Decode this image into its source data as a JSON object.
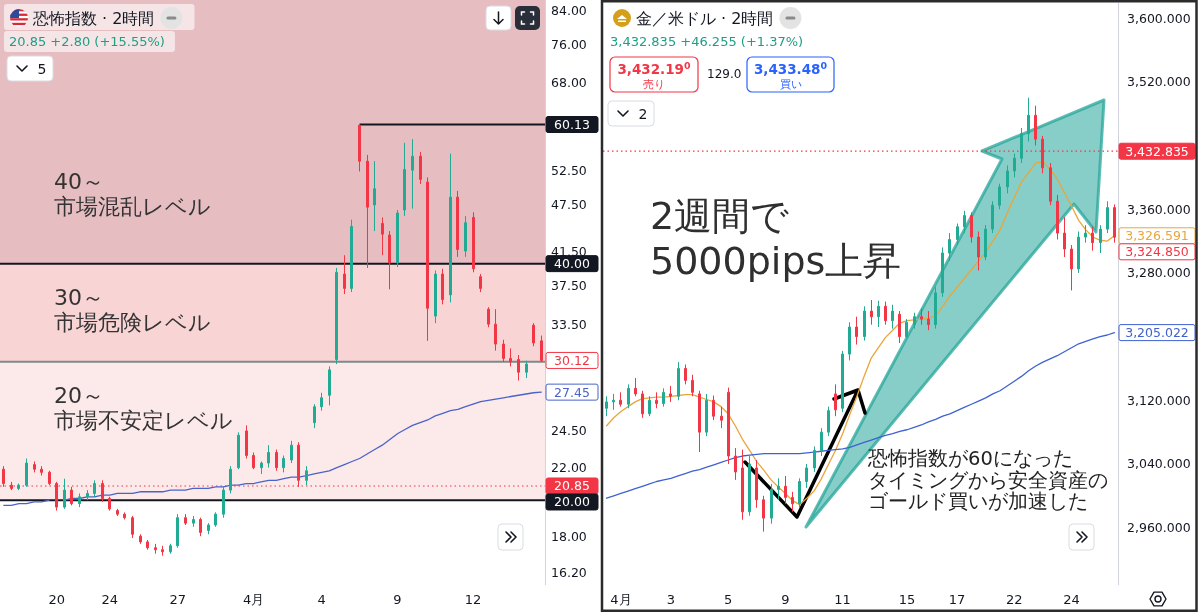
{
  "chart_data": [
    {
      "type": "candlestick",
      "title": "恐怖指数 · 2時間",
      "subtitle": "20.85 +2.80 (+15.55%)",
      "categories": [
        null,
        null,
        null,
        null,
        null,
        null,
        null,
        "20",
        null,
        null,
        null,
        null,
        null,
        null,
        "24",
        null,
        null,
        null,
        null,
        null,
        null,
        null,
        null,
        "27",
        null,
        null,
        null,
        null,
        null,
        null,
        null,
        null,
        null,
        "4月",
        null,
        null,
        null,
        null,
        null,
        null,
        null,
        null,
        "4",
        null,
        null,
        null,
        null,
        null,
        null,
        null,
        null,
        null,
        "9",
        null,
        null,
        null,
        null,
        null,
        null,
        null,
        null,
        null,
        "12",
        null,
        null,
        null,
        null,
        null,
        null,
        null,
        null,
        null
      ],
      "ohlc": [
        [
          21.9,
          22.1,
          20.8,
          21.0
        ],
        [
          20.9,
          21.1,
          20.6,
          20.7
        ],
        [
          20.7,
          21.0,
          20.6,
          20.9
        ],
        [
          20.9,
          22.6,
          20.8,
          22.3
        ],
        [
          22.2,
          22.4,
          21.7,
          21.9
        ],
        [
          21.9,
          22.1,
          21.5,
          21.7
        ],
        [
          21.7,
          21.8,
          20.9,
          21.0
        ],
        [
          21.0,
          21.1,
          19.4,
          19.6
        ],
        [
          19.6,
          21.3,
          19.5,
          20.6
        ],
        [
          20.6,
          20.8,
          19.7,
          19.8
        ],
        [
          19.8,
          20.4,
          19.6,
          20.2
        ],
        [
          20.2,
          20.6,
          20.0,
          20.4
        ],
        [
          20.4,
          21.2,
          20.2,
          21.0
        ],
        [
          21.0,
          21.2,
          19.9,
          20.1
        ],
        [
          20.1,
          20.2,
          19.4,
          19.5
        ],
        [
          19.4,
          19.5,
          19.1,
          19.2
        ],
        [
          19.2,
          19.3,
          18.9,
          19.0
        ],
        [
          19.0,
          19.1,
          17.9,
          18.1
        ],
        [
          18.0,
          18.1,
          17.6,
          17.7
        ],
        [
          17.7,
          17.8,
          17.3,
          17.4
        ],
        [
          17.4,
          17.6,
          17.1,
          17.3
        ],
        [
          17.3,
          17.5,
          17.0,
          17.2
        ],
        [
          17.2,
          17.6,
          17.1,
          17.5
        ],
        [
          17.5,
          19.2,
          17.4,
          19.0
        ],
        [
          19.0,
          19.2,
          18.6,
          18.7
        ],
        [
          18.7,
          19.1,
          18.5,
          18.9
        ],
        [
          18.9,
          19.0,
          18.0,
          18.2
        ],
        [
          18.3,
          18.7,
          18.1,
          18.6
        ],
        [
          18.6,
          19.3,
          18.5,
          19.2
        ],
        [
          19.2,
          20.8,
          19.0,
          20.6
        ],
        [
          20.6,
          22.1,
          20.4,
          21.9
        ],
        [
          22.0,
          24.4,
          21.9,
          24.2
        ],
        [
          24.5,
          24.9,
          22.6,
          22.8
        ],
        [
          22.8,
          23.0,
          21.9,
          22.0
        ],
        [
          22.0,
          22.4,
          21.6,
          22.3
        ],
        [
          22.3,
          23.5,
          22.0,
          23.0
        ],
        [
          23.0,
          23.2,
          21.8,
          22.0
        ],
        [
          22.0,
          22.8,
          21.7,
          22.6
        ],
        [
          22.5,
          23.8,
          22.3,
          23.5
        ],
        [
          23.5,
          23.7,
          20.8,
          21.2
        ],
        [
          21.2,
          22.1,
          20.9,
          21.8
        ],
        [
          25.1,
          26.5,
          24.7,
          26.3
        ],
        [
          26.3,
          27.4,
          26.0,
          27.0
        ],
        [
          27.2,
          29.6,
          26.4,
          29.3
        ],
        [
          30.2,
          39.5,
          29.8,
          39.0
        ],
        [
          38.8,
          41.0,
          36.6,
          37.2
        ],
        [
          37.2,
          45.5,
          36.8,
          44.6
        ],
        [
          60.0,
          60.13,
          52.4,
          54.0
        ],
        [
          54.0,
          55.0,
          39.5,
          47.2
        ],
        [
          47.5,
          54.0,
          44.0,
          49.8
        ],
        [
          45.0,
          45.8,
          41.0,
          43.6
        ],
        [
          43.5,
          44.0,
          37.1,
          40.1
        ],
        [
          40.1,
          46.8,
          39.6,
          46.4
        ],
        [
          46.8,
          57.0,
          46.0,
          52.7
        ],
        [
          52.6,
          57.6,
          47.0,
          54.8
        ],
        [
          54.8,
          55.5,
          50.5,
          51.2
        ],
        [
          50.8,
          51.5,
          31.9,
          35.1
        ],
        [
          34.3,
          39.2,
          33.6,
          38.8
        ],
        [
          38.8,
          39.4,
          35.5,
          36.0
        ],
        [
          36.5,
          55.2,
          35.7,
          48.6
        ],
        [
          48.6,
          49.5,
          40.8,
          41.7
        ],
        [
          41.5,
          46.0,
          40.8,
          45.1
        ],
        [
          45.8,
          46.5,
          39.0,
          39.4
        ],
        [
          38.5,
          38.8,
          36.8,
          37.2
        ],
        [
          35.0,
          35.2,
          33.2,
          33.5
        ],
        [
          33.5,
          35.0,
          31.0,
          31.6
        ],
        [
          31.6,
          32.0,
          30.0,
          30.3
        ],
        [
          30.3,
          31.2,
          29.6,
          30.0
        ],
        [
          30.2,
          30.6,
          28.4,
          29.1
        ],
        [
          29.1,
          30.1,
          28.6,
          29.8
        ],
        [
          33.4,
          33.6,
          31.4,
          31.7
        ],
        [
          31.9,
          32.4,
          30.0,
          30.12
        ]
      ],
      "value_labels": [
        null,
        null,
        null,
        null,
        null,
        null,
        null,
        null,
        null,
        null,
        null,
        null,
        null,
        null,
        null,
        null,
        null,
        null,
        null,
        null,
        null,
        null,
        null,
        null,
        null,
        null,
        null,
        null,
        null,
        null,
        null,
        null,
        null,
        null,
        null,
        null,
        null,
        null,
        null,
        null,
        null,
        null,
        null,
        null,
        null,
        null,
        null,
        null,
        null,
        null,
        null,
        null,
        null,
        null,
        null,
        null,
        null,
        null,
        null,
        null,
        null,
        null,
        null,
        null,
        null,
        null,
        null,
        null,
        null,
        null,
        null,
        "30.12"
      ],
      "series": [
        {
          "type": "line",
          "color": "#4a63c9",
          "values": [
            19.7,
            19.7,
            19.8,
            19.8,
            19.9,
            19.9,
            20.0,
            null,
            20.0,
            20.1,
            20.1,
            20.2,
            20.2,
            20.3,
            20.3,
            20.4,
            20.4,
            20.4,
            20.5,
            20.5,
            20.5,
            20.5,
            20.6,
            20.6,
            20.6,
            20.7,
            20.7,
            20.7,
            20.8,
            20.8,
            20.9,
            20.9,
            21.0,
            21.0,
            21.1,
            21.2,
            21.2,
            21.3,
            21.4,
            21.4,
            21.5,
            21.6,
            21.7,
            21.8,
            22.0,
            22.2,
            22.4,
            22.6,
            22.9,
            23.2,
            23.5,
            23.9,
            24.3,
            24.6,
            24.9,
            25.1,
            25.3,
            25.6,
            25.8,
            26.0,
            26.1,
            26.3,
            26.5,
            26.7,
            26.8,
            26.9,
            27.0,
            27.1,
            27.2,
            27.3,
            27.4,
            27.45
          ],
          "value_labels": [
            null,
            null,
            null,
            null,
            null,
            null,
            null,
            null,
            null,
            null,
            null,
            null,
            null,
            null,
            null,
            null,
            null,
            null,
            null,
            null,
            null,
            null,
            null,
            null,
            null,
            null,
            null,
            null,
            null,
            null,
            null,
            null,
            null,
            null,
            null,
            null,
            null,
            null,
            null,
            null,
            null,
            null,
            null,
            null,
            null,
            null,
            null,
            null,
            null,
            null,
            null,
            null,
            null,
            null,
            null,
            null,
            null,
            null,
            null,
            null,
            null,
            null,
            null,
            null,
            null,
            null,
            null,
            null,
            null,
            null,
            null,
            "27.45"
          ]
        }
      ],
      "log": "y",
      "ylim": [
        15.6,
        86.6
      ],
      "yticks": [
        {
          "value": 84,
          "label": "84.00"
        },
        {
          "value": 76,
          "label": "76.00"
        },
        {
          "value": 68,
          "label": "68.00"
        },
        {
          "value": 52.5,
          "label": "52.50"
        },
        {
          "value": 47.5,
          "label": "47.50"
        },
        {
          "value": 41.5,
          "label": "41.50"
        },
        {
          "value": 37.5,
          "label": "37.50"
        },
        {
          "value": 33.5,
          "label": "33.50"
        },
        {
          "value": 24.5,
          "label": "24.50"
        },
        {
          "value": 22,
          "label": "22.00"
        },
        {
          "value": 18,
          "label": "18.00"
        },
        {
          "value": 16.2,
          "label": "16.20"
        }
      ],
      "bands": [
        {
          "axis": "y",
          "from": 40,
          "to": 86.6,
          "label": "40～市場混乱レベル",
          "color": "#e6bec2"
        },
        {
          "axis": "y",
          "from": 30,
          "to": 40,
          "label": "30～市場危険レベル",
          "color": "#f8d4d5"
        },
        {
          "axis": "y",
          "from": 20,
          "to": 30,
          "label": "20～市場不安定レベル",
          "color": "#fce9ea"
        }
      ],
      "ref_lines": [
        {
          "axis": "y",
          "value": 60.13,
          "label": "60.13",
          "color": "#131722"
        },
        {
          "axis": "y",
          "value": 40,
          "label": "40.00",
          "color": "#131722"
        },
        {
          "axis": "y",
          "value": 30,
          "color": "#7c8a89"
        },
        {
          "axis": "y",
          "value": 20,
          "label": "20.00",
          "color": "#131722"
        },
        {
          "axis": "y",
          "value": 20.85,
          "label": "20.85",
          "color": "#f23645",
          "line_style": "dotted"
        }
      ],
      "annotations": [
        "5"
      ]
    },
    {
      "type": "candlestick",
      "title": "金／米ドル · 2時間",
      "subtitle": "3,432.835 +46.255 (+1.37%)",
      "categories": [
        null,
        null,
        "4月",
        null,
        null,
        null,
        null,
        null,
        null,
        "3",
        null,
        null,
        null,
        null,
        null,
        null,
        null,
        "5",
        null,
        null,
        null,
        null,
        null,
        null,
        null,
        "9",
        null,
        null,
        null,
        null,
        null,
        null,
        null,
        "11",
        null,
        null,
        null,
        null,
        null,
        null,
        null,
        null,
        "15",
        null,
        null,
        null,
        null,
        null,
        null,
        "17",
        null,
        null,
        null,
        null,
        null,
        null,
        null,
        "22",
        null,
        null,
        null,
        null,
        null,
        null,
        null,
        "24",
        null,
        null,
        null,
        null,
        null,
        null
      ],
      "ohlc": [
        [
          3110,
          3125,
          3100,
          3118
        ],
        [
          3118,
          3128,
          3108,
          3120
        ],
        [
          3120,
          3130,
          3112,
          3115
        ],
        [
          3115,
          3140,
          3110,
          3135
        ],
        [
          3135,
          3148,
          3125,
          3128
        ],
        [
          3128,
          3132,
          3098,
          3103
        ],
        [
          3103,
          3125,
          3100,
          3120
        ],
        [
          3120,
          3130,
          3110,
          3116
        ],
        [
          3116,
          3135,
          3112,
          3130
        ],
        [
          3128,
          3138,
          3118,
          3125
        ],
        [
          3125,
          3168,
          3120,
          3160
        ],
        [
          3160,
          3165,
          3140,
          3145
        ],
        [
          3145,
          3152,
          3125,
          3130
        ],
        [
          3128,
          3132,
          3055,
          3080
        ],
        [
          3080,
          3128,
          3075,
          3120
        ],
        [
          3120,
          3126,
          3095,
          3100
        ],
        [
          3100,
          3112,
          3085,
          3095
        ],
        [
          3130,
          3136,
          3040,
          3050
        ],
        [
          3050,
          3060,
          3020,
          3030
        ],
        [
          3035,
          3058,
          2970,
          2980
        ],
        [
          2980,
          3050,
          2975,
          3040
        ],
        [
          3035,
          3045,
          2985,
          2995
        ],
        [
          2995,
          3000,
          2955,
          2972
        ],
        [
          2972,
          3015,
          2965,
          3008
        ],
        [
          3008,
          3022,
          2995,
          3012
        ],
        [
          3012,
          3025,
          2990,
          2998
        ],
        [
          2998,
          3005,
          2980,
          2990
        ],
        [
          2990,
          3022,
          2985,
          3018
        ],
        [
          3018,
          3040,
          3010,
          3035
        ],
        [
          3035,
          3062,
          3030,
          3057
        ],
        [
          3057,
          3085,
          3050,
          3080
        ],
        [
          3080,
          3112,
          3075,
          3107
        ],
        [
          3128,
          3140,
          3100,
          3108
        ],
        [
          3110,
          3182,
          3105,
          3178
        ],
        [
          3178,
          3218,
          3170,
          3212
        ],
        [
          3212,
          3225,
          3190,
          3200
        ],
        [
          3200,
          3238,
          3195,
          3232
        ],
        [
          3232,
          3246,
          3215,
          3225
        ],
        [
          3225,
          3245,
          3212,
          3238
        ],
        [
          3238,
          3244,
          3215,
          3220
        ],
        [
          3220,
          3240,
          3210,
          3232
        ],
        [
          3228,
          3232,
          3192,
          3200
        ],
        [
          3200,
          3222,
          3198,
          3218
        ],
        [
          3215,
          3230,
          3210,
          3225
        ],
        [
          3225,
          3235,
          3215,
          3222
        ],
        [
          3222,
          3232,
          3208,
          3215
        ],
        [
          3215,
          3262,
          3210,
          3255
        ],
        [
          3255,
          3312,
          3250,
          3305
        ],
        [
          3305,
          3330,
          3295,
          3322
        ],
        [
          3322,
          3342,
          3315,
          3338
        ],
        [
          3338,
          3358,
          3330,
          3352
        ],
        [
          3352,
          3356,
          3318,
          3325
        ],
        [
          3325,
          3332,
          3283,
          3300
        ],
        [
          3300,
          3340,
          3296,
          3335
        ],
        [
          3335,
          3370,
          3330,
          3365
        ],
        [
          3365,
          3392,
          3360,
          3388
        ],
        [
          3388,
          3415,
          3380,
          3408
        ],
        [
          3408,
          3430,
          3400,
          3424
        ],
        [
          3424,
          3462,
          3418,
          3455
        ],
        [
          3455,
          3500,
          3445,
          3478
        ],
        [
          3478,
          3490,
          3440,
          3448
        ],
        [
          3448,
          3452,
          3405,
          3412
        ],
        [
          3412,
          3418,
          3365,
          3370
        ],
        [
          3370,
          3378,
          3322,
          3330
        ],
        [
          3330,
          3350,
          3300,
          3310
        ],
        [
          3310,
          3315,
          3258,
          3285
        ],
        [
          3285,
          3332,
          3280,
          3325
        ],
        [
          3325,
          3340,
          3318,
          3330
        ],
        [
          3330,
          3338,
          3308,
          3318
        ],
        [
          3318,
          3340,
          3305,
          3335
        ],
        [
          3335,
          3370,
          3330,
          3362
        ],
        [
          3362,
          3366,
          3318,
          3324.85
        ]
      ],
      "value_labels": [
        null,
        null,
        null,
        null,
        null,
        null,
        null,
        null,
        null,
        null,
        null,
        null,
        null,
        null,
        null,
        null,
        null,
        null,
        null,
        null,
        null,
        null,
        null,
        null,
        null,
        null,
        null,
        null,
        null,
        null,
        null,
        null,
        null,
        null,
        null,
        null,
        null,
        null,
        null,
        null,
        null,
        null,
        null,
        null,
        null,
        null,
        null,
        null,
        null,
        null,
        null,
        null,
        null,
        null,
        null,
        null,
        null,
        null,
        null,
        null,
        null,
        null,
        null,
        null,
        null,
        null,
        null,
        null,
        null,
        null,
        null,
        "3,324.850"
      ],
      "series": [
        {
          "type": "line",
          "color": "#eaa53b",
          "values": [
            3088,
            3098,
            3106,
            3112,
            3118,
            3122,
            3123,
            3124,
            3124,
            3125,
            3126,
            3127,
            3127,
            3124,
            3121,
            3118,
            3112,
            3103,
            3088,
            3071,
            3057,
            3043,
            3032,
            3020,
            3011,
            3003,
            2994,
            2989,
            2997,
            3006,
            3021,
            3039,
            3057,
            3078,
            3102,
            3125,
            3150,
            3173,
            3186,
            3199,
            3208,
            3217,
            3220,
            3221,
            3222,
            3223,
            3226,
            3238,
            3251,
            3262,
            3273,
            3284,
            3295,
            3306,
            3320,
            3334,
            3355,
            3375,
            3394,
            3406,
            3418,
            3420,
            3410,
            3398,
            3381,
            3364,
            3346,
            3334,
            3325,
            3321,
            3320,
            3326.591
          ],
          "value_labels": [
            null,
            null,
            null,
            null,
            null,
            null,
            null,
            null,
            null,
            null,
            null,
            null,
            null,
            null,
            null,
            null,
            null,
            null,
            null,
            null,
            null,
            null,
            null,
            null,
            null,
            null,
            null,
            null,
            null,
            null,
            null,
            null,
            null,
            null,
            null,
            null,
            null,
            null,
            null,
            null,
            null,
            null,
            null,
            null,
            null,
            null,
            null,
            null,
            null,
            null,
            null,
            null,
            null,
            null,
            null,
            null,
            null,
            null,
            null,
            null,
            null,
            null,
            null,
            null,
            null,
            null,
            null,
            null,
            null,
            null,
            null,
            "3,326.591"
          ]
        },
        {
          "type": "line",
          "color": "#3e62d1",
          "values": [
            2997,
            3000,
            3003,
            3006,
            3009,
            3012,
            3015,
            3018,
            3020,
            3022,
            3025,
            3028,
            3031,
            3033,
            3036,
            3039,
            3042,
            3045,
            3048,
            3050,
            3051,
            3052,
            3053,
            3053,
            3053,
            3053,
            3053,
            3053,
            3054,
            3055,
            3056,
            3057,
            3058,
            3059,
            3061,
            3064,
            3067,
            3070,
            3073,
            3076,
            3078,
            3081,
            3083,
            3086,
            3089,
            3093,
            3096,
            3100,
            3103,
            3107,
            3111,
            3115,
            3119,
            3123,
            3128,
            3132,
            3138,
            3144,
            3150,
            3157,
            3163,
            3168,
            3172,
            3176,
            3181,
            3186,
            3191,
            3194,
            3197,
            3200,
            3202,
            3205.022
          ],
          "value_labels": [
            null,
            null,
            null,
            null,
            null,
            null,
            null,
            null,
            null,
            null,
            null,
            null,
            null,
            null,
            null,
            null,
            null,
            null,
            null,
            null,
            null,
            null,
            null,
            null,
            null,
            null,
            null,
            null,
            null,
            null,
            null,
            null,
            null,
            null,
            null,
            null,
            null,
            null,
            null,
            null,
            null,
            null,
            null,
            null,
            null,
            null,
            null,
            null,
            null,
            null,
            null,
            null,
            null,
            null,
            null,
            null,
            null,
            null,
            null,
            null,
            null,
            null,
            null,
            null,
            null,
            null,
            null,
            null,
            null,
            null,
            null,
            "3,205.022"
          ]
        }
      ],
      "ylim": [
        2888,
        3619
      ],
      "yticks": [
        {
          "value": 3600,
          "label": "3,600.000"
        },
        {
          "value": 3520,
          "label": "3,520.000"
        },
        {
          "value": 3360,
          "label": "3,360.000"
        },
        {
          "value": 3280,
          "label": "3,280.000"
        },
        {
          "value": 3120,
          "label": "3,120.000"
        },
        {
          "value": 3040,
          "label": "3,040.000"
        },
        {
          "value": 2960,
          "label": "2,960.000"
        }
      ],
      "ref_lines": [
        {
          "axis": "y",
          "value": 3432.835,
          "label": "3,432.835",
          "color": "#f23645",
          "line_style": "dotted"
        }
      ],
      "annotations": [
        "3,432.19$^{0}$\n売り",
        "129.0",
        "3,433.48$^{0}$\n買い",
        "2",
        "2週間で5000pips上昇",
        "恐怖指数が60になったタイミングから安全資産のゴールド買いが加速した"
      ]
    }
  ]
}
